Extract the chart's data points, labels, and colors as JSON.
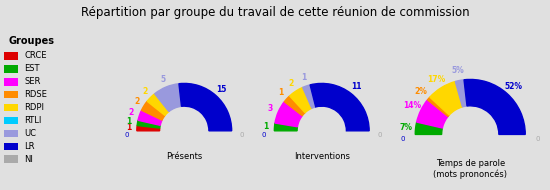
{
  "title": "Répartition par groupe du travail de cette réunion de commission",
  "groups": [
    "CRCE",
    "EST",
    "SER",
    "RDSE",
    "RDPI",
    "RTLI",
    "UC",
    "LR",
    "NI"
  ],
  "colors": [
    "#dd0000",
    "#00aa00",
    "#ff00ff",
    "#ff8c00",
    "#ffd700",
    "#00ccff",
    "#9999dd",
    "#0000cc",
    "#aaaaaa"
  ],
  "chart1_values": [
    1,
    1,
    2,
    2,
    2,
    0,
    5,
    15,
    0
  ],
  "chart1_label": "Présents",
  "chart2_values": [
    0,
    1,
    3,
    1,
    2,
    0,
    1,
    11,
    0
  ],
  "chart2_label": "Interventions",
  "chart3_values": [
    0,
    7,
    14,
    2,
    17,
    0,
    5,
    52,
    0
  ],
  "chart3_label": "Temps de parole\n(mots prononcés)",
  "chart3_suffix": "%",
  "legend_title": "Groupes",
  "background_color": "#e0e0e0",
  "fig_width": 5.5,
  "fig_height": 1.9
}
